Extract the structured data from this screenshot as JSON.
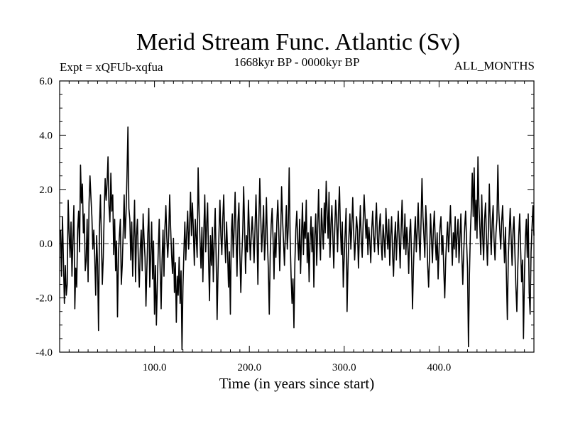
{
  "chart_data": {
    "type": "line",
    "title": "Merid Stream Func. Atlantic (Sv)",
    "subtitle_left": "Expt = xQFUb-xqfua",
    "subtitle_center": "1668kyr BP - 0000kyr BP",
    "subtitle_right": "ALL_MONTHS",
    "xlabel": "Time (in years since start)",
    "ylabel": "",
    "xlim": [
      0,
      500
    ],
    "ylim": [
      -4.0,
      6.0
    ],
    "xticks": [
      100,
      200,
      300,
      400
    ],
    "xtick_labels": [
      "100.0",
      "200.0",
      "300.0",
      "400.0"
    ],
    "yticks": [
      -4,
      -2,
      0,
      2,
      4,
      6
    ],
    "ytick_labels": [
      "-4.0",
      "-2.0",
      "0.0",
      "2.0",
      "4.0",
      "6.0"
    ],
    "zero_line": 0.0,
    "series": [
      {
        "name": "Merid Stream Func. Atlantic",
        "color": "#000000",
        "x_start": 1,
        "x_step": 1,
        "values": [
          0.5,
          -1.2,
          1.0,
          -0.6,
          -2.2,
          -0.8,
          -1.9,
          -1.5,
          1.6,
          0.4,
          -0.5,
          0.8,
          -1.2,
          0.2,
          1.4,
          -2.4,
          -0.9,
          -1.6,
          0.5,
          1.2,
          -0.3,
          2.9,
          1.5,
          2.2,
          0.4,
          1.1,
          -1.0,
          -0.6,
          0.9,
          -1.4,
          1.5,
          2.5,
          1.7,
          1.0,
          -0.2,
          0.5,
          -0.5,
          -1.9,
          0.3,
          -0.8,
          -3.2,
          0.6,
          1.8,
          0.2,
          -1.5,
          -0.5,
          1.2,
          2.4,
          1.6,
          2.2,
          3.2,
          1.4,
          0.8,
          2.6,
          1.2,
          1.8,
          -0.4,
          0.9,
          -1.0,
          0.1,
          -2.7,
          -0.4,
          0.3,
          0.9,
          -1.5,
          -0.8,
          0.4,
          1.8,
          0.2,
          1.1,
          2.5,
          4.3,
          1.3,
          0.9,
          -0.6,
          0.8,
          -1.2,
          0.2,
          1.6,
          -1.4,
          0.3,
          0.9,
          -0.7,
          -1.6,
          -0.2,
          0.5,
          -1.0,
          1.1,
          0.2,
          -0.5,
          -2.3,
          -0.9,
          0.4,
          1.3,
          -1.6,
          -0.4,
          0.8,
          -1.3,
          0.1,
          -2.6,
          -0.8,
          -3.0,
          -1.5,
          -0.2,
          0.9,
          -1.0,
          -2.4,
          -0.6,
          0.5,
          -1.2,
          0.6,
          1.4,
          0.2,
          -0.5,
          0.3,
          1.8,
          0.6,
          -0.4,
          -1.1,
          0.2,
          -1.8,
          -0.7,
          -2.9,
          -1.2,
          -1.9,
          -0.5,
          -2.2,
          -1.0,
          -3.9,
          -1.6,
          -0.3,
          0.8,
          -0.6,
          0.4,
          1.2,
          -0.2,
          0.6,
          1.9,
          0.3,
          1.5,
          0.5,
          -0.8,
          0.9,
          0.2,
          -0.5,
          2.8,
          1.2,
          0.1,
          -0.9,
          0.6,
          -1.4,
          0.4,
          1.8,
          -0.3,
          0.7,
          1.5,
          -0.6,
          -2.1,
          0.3,
          -0.8,
          0.6,
          -1.4,
          0.2,
          1.3,
          -0.5,
          -2.8,
          -1.0,
          0.4,
          1.6,
          0.3,
          -0.4,
          0.9,
          1.8,
          0.2,
          -0.7,
          0.8,
          -0.2,
          -1.6,
          -0.3,
          -2.6,
          0.4,
          1.1,
          -0.5,
          0.6,
          1.9,
          0.2,
          -1.2,
          0.8,
          1.5,
          -0.4,
          -1.8,
          -0.5,
          0.4,
          2.1,
          0.6,
          -1.1,
          0.3,
          -0.3,
          1.6,
          0.5,
          -0.6,
          0.3,
          1.0,
          0.2,
          -0.7,
          0.6,
          1.8,
          0.4,
          -1.5,
          0.8,
          2.4,
          1.0,
          -0.3,
          0.5,
          1.4,
          -0.6,
          0.2,
          1.7,
          0.1,
          -0.9,
          -2.6,
          -0.4,
          0.7,
          1.3,
          0.2,
          -1.3,
          0.4,
          -0.5,
          0.8,
          1.6,
          0.5,
          -1.0,
          0.3,
          2.1,
          0.9,
          0.1,
          -0.8,
          0.4,
          1.4,
          -0.2,
          0.6,
          2.8,
          0.2,
          -1.2,
          -2.2,
          -1.3,
          -3.1,
          -0.7,
          0.5,
          1.2,
          0.1,
          -0.6,
          0.9,
          -1.1,
          0.3,
          1.5,
          -0.4,
          0.8,
          0.2,
          1.6,
          -0.7,
          0.4,
          -1.4,
          0.1,
          1.0,
          -0.3,
          0.6,
          -1.6,
          0.3,
          1.1,
          -0.8,
          0.5,
          2.0,
          0.2,
          -0.6,
          1.3,
          0.6,
          -0.2,
          1.5,
          0.4,
          2.3,
          1.2,
          0.2,
          1.9,
          -0.5,
          0.7,
          1.4,
          0.3,
          -0.9,
          0.5,
          1.6,
          0.9,
          -0.3,
          1.2,
          2.1,
          0.6,
          -0.4,
          0.8,
          -1.6,
          -0.5,
          0.4,
          1.3,
          -2.5,
          -0.8,
          0.3,
          1.1,
          -0.2,
          0.6,
          1.7,
          0.4,
          -0.6,
          0.2,
          1.0,
          0.5,
          -0.9,
          0.3,
          1.4,
          0.1,
          -0.5,
          0.8,
          1.8,
          1.0,
          0.2,
          0.9,
          -0.4,
          0.6,
          0.1,
          -0.7,
          0.5,
          1.2,
          0.3,
          -0.3,
          0.8,
          1.5,
          0.2,
          -0.4,
          0.6,
          1.1,
          0.0,
          -0.6,
          0.7,
          0.2,
          -0.5,
          1.3,
          0.4,
          -0.2,
          0.9,
          -0.8,
          0.3,
          1.0,
          -0.4,
          -1.2,
          0.1,
          0.8,
          -0.6,
          0.4,
          1.2,
          0.2,
          -0.9,
          0.5,
          1.6,
          0.3,
          -0.2,
          1.1,
          -0.4,
          0.6,
          0.0,
          -1.1,
          0.4,
          0.9,
          -0.5,
          -2.4,
          -0.9,
          0.3,
          1.0,
          -0.3,
          0.5,
          1.5,
          0.2,
          -0.6,
          0.8,
          2.4,
          1.0,
          0.3,
          -0.5,
          1.4,
          0.6,
          -0.8,
          -1.6,
          -0.4,
          1.1,
          0.2,
          -0.7,
          0.5,
          1.2,
          0.1,
          -0.6,
          0.4,
          -1.3,
          -0.2,
          0.6,
          1.0,
          -0.4,
          0.3,
          -1.0,
          -2.0,
          -0.6,
          0.2,
          0.8,
          -0.3,
          0.5,
          1.4,
          0.2,
          -0.8,
          0.4,
          -0.2,
          1.0,
          -0.5,
          0.3,
          0.9,
          -0.7,
          0.2,
          1.1,
          -0.4,
          -1.5,
          -0.3,
          0.6,
          1.2,
          0.1,
          -0.9,
          -3.8,
          -1.2,
          0.4,
          1.3,
          2.6,
          1.0,
          2.8,
          0.5,
          1.6,
          0.2,
          3.2,
          1.4,
          0.6,
          -0.4,
          1.8,
          0.3,
          -0.6,
          0.9,
          1.5,
          0.2,
          -0.8,
          0.5,
          2.2,
          0.6,
          -0.4,
          0.8,
          1.4,
          0.1,
          -0.6,
          0.4,
          0.9,
          2.9,
          1.2,
          0.5,
          -0.2,
          0.8,
          1.4,
          0.3,
          -0.7,
          0.6,
          -1.2,
          -2.8,
          -0.5,
          0.4,
          1.3,
          0.2,
          -0.8,
          0.5,
          1.0,
          -0.4,
          -1.6,
          -2.5,
          -0.9,
          0.3,
          1.1,
          -0.2,
          -1.4,
          -0.6,
          -3.5,
          -1.2,
          0.2,
          0.9,
          -0.5,
          1.1,
          -1.8,
          -2.6,
          -0.3,
          0.6,
          1.4,
          0.3
        ]
      }
    ]
  }
}
